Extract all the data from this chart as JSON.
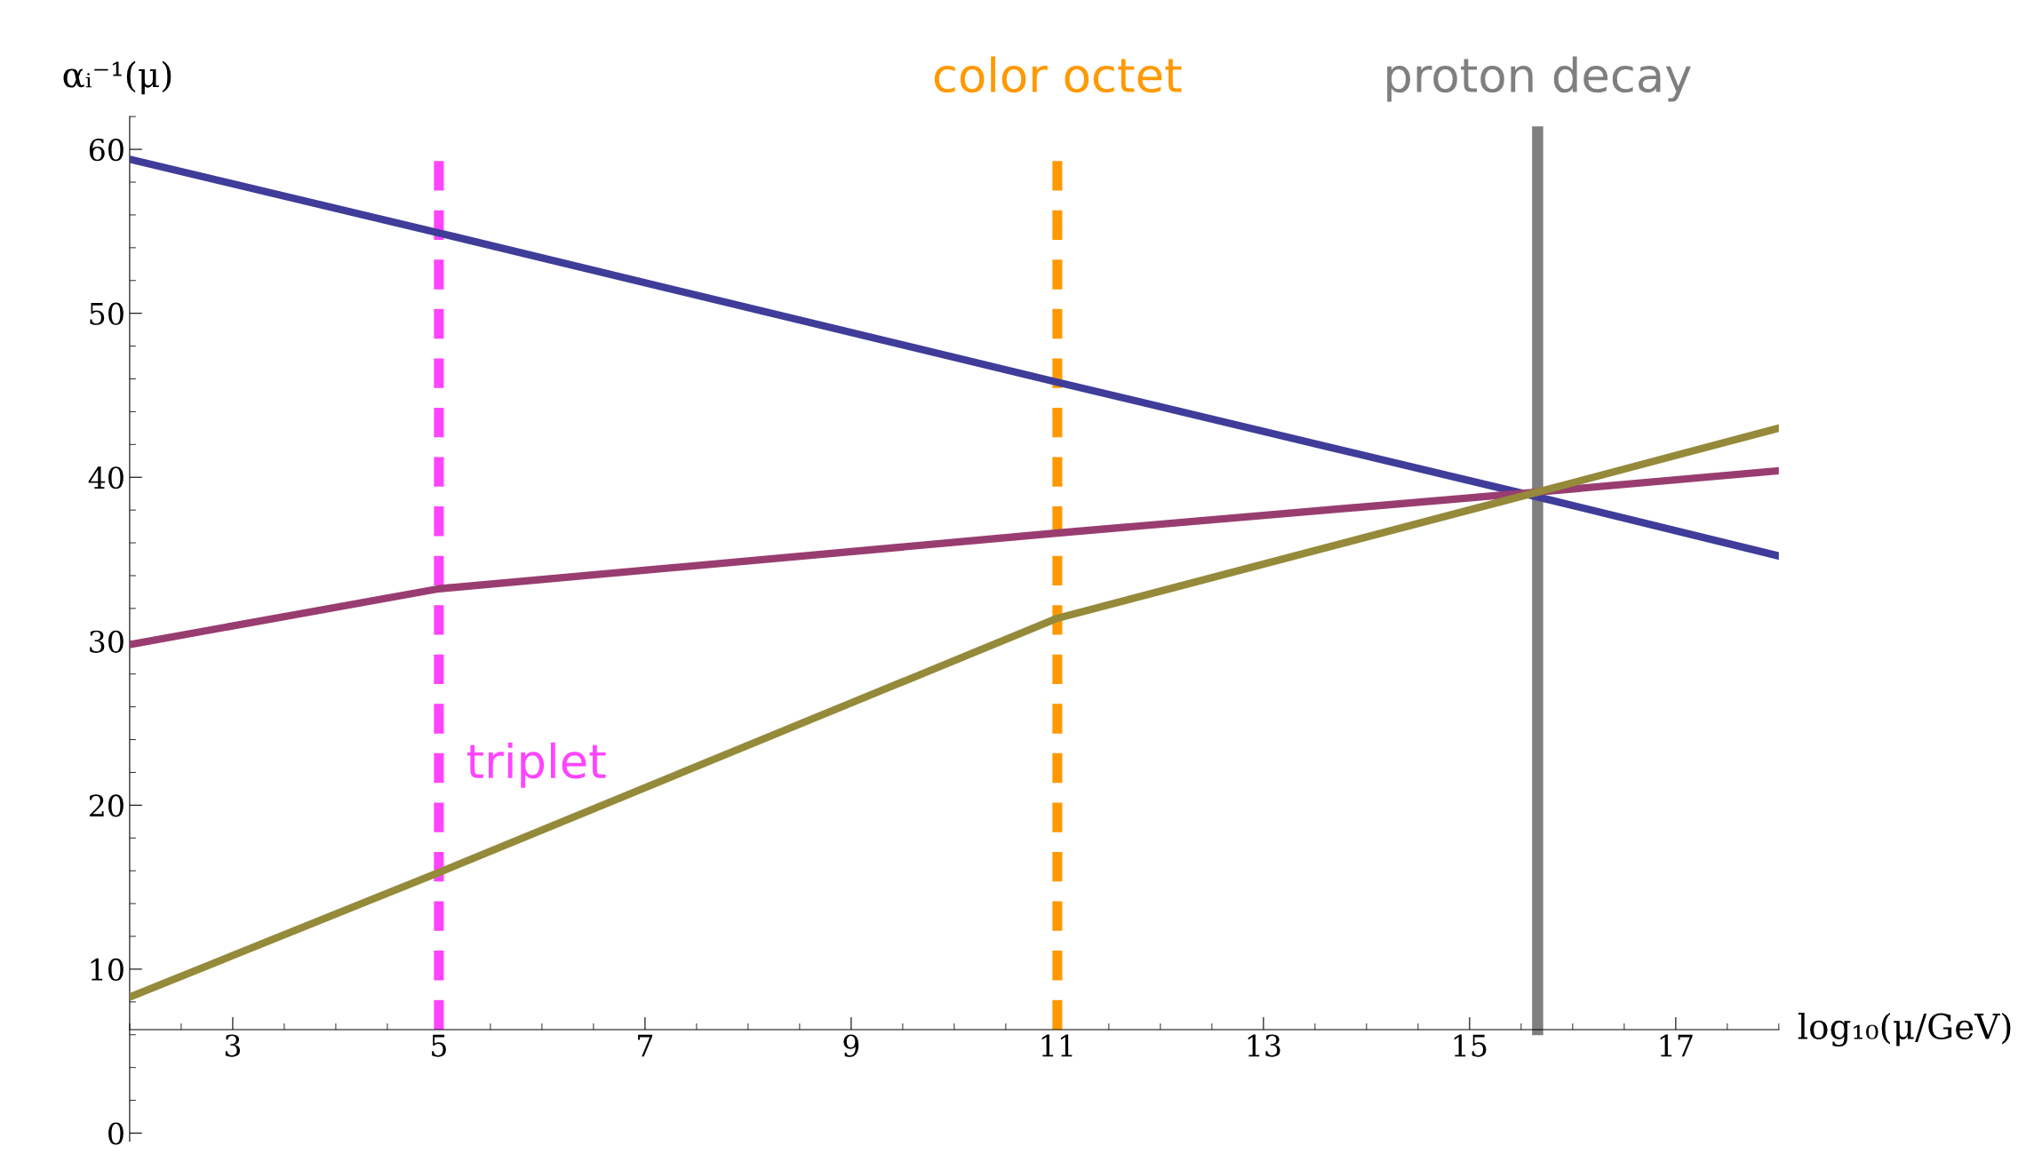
{
  "chart_data": {
    "type": "line",
    "xlabel": "log₁₀(μ/GeV)",
    "ylabel": "αᵢ⁻¹(μ)",
    "x": [
      2,
      5,
      11,
      15.66,
      18
    ],
    "series": [
      {
        "color": "#3f3d99",
        "values": [
          59.4,
          54.9,
          45.8,
          38.8,
          35.2
        ]
      },
      {
        "color": "#993d71",
        "values": [
          29.8,
          33.2,
          36.6,
          39.1,
          40.4
        ]
      },
      {
        "color": "#948a3a",
        "values": [
          8.3,
          15.9,
          31.4,
          39.1,
          43.0
        ]
      }
    ],
    "xlim": [
      2,
      18
    ],
    "ylim": [
      -0.5,
      62
    ],
    "xticks": [
      3,
      5,
      7,
      9,
      11,
      13,
      15,
      17
    ],
    "yticks": [
      0,
      10,
      20,
      30,
      40,
      50,
      60
    ],
    "ref_lines": [
      {
        "axis": "x",
        "value": 5,
        "color": "#ff44ff",
        "line_style": "dashed"
      },
      {
        "axis": "x",
        "value": 11,
        "label": "color octet",
        "color": "#ff9900",
        "line_style": "dashed"
      },
      {
        "axis": "x",
        "value": 15.66,
        "label": "proton decay",
        "color": "#7f7f7f",
        "line_style": "solid"
      }
    ],
    "annotations": [
      "triplet"
    ],
    "grid": false,
    "legend": false,
    "marker": "none",
    "line_style": "solid"
  }
}
